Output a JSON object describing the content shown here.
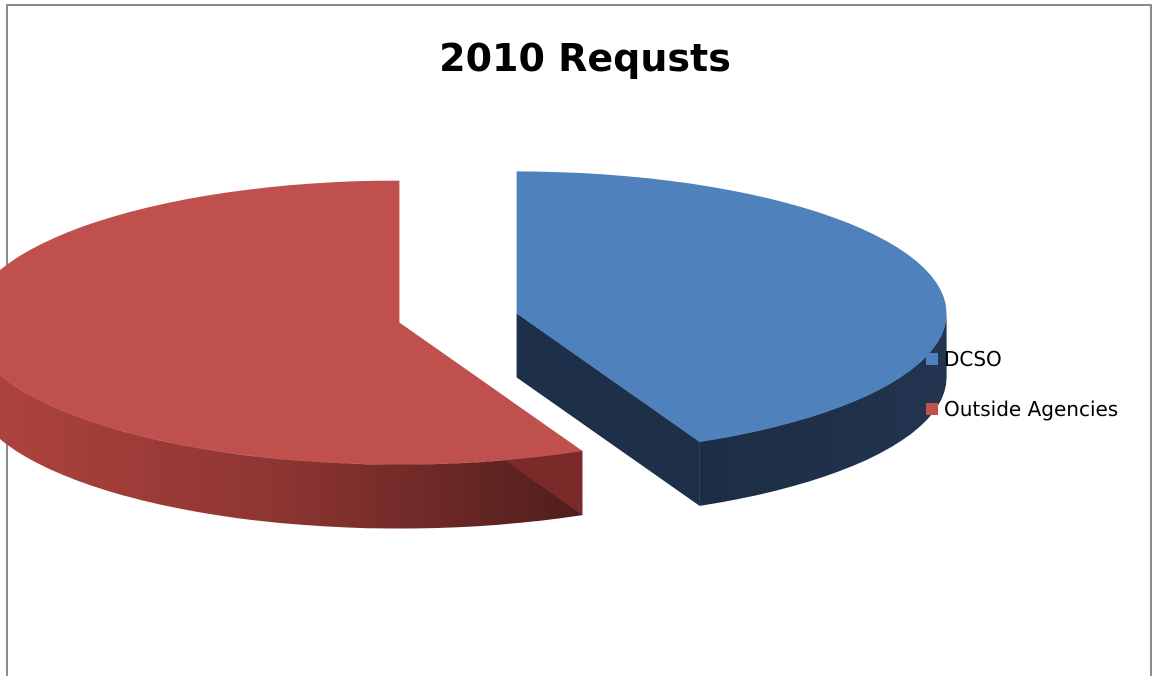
{
  "chart_data": {
    "type": "pie",
    "title": "2010 Requsts",
    "categories": [
      "DCSO",
      "Outside Agencies"
    ],
    "values": [
      43,
      57
    ],
    "colors": [
      "#4f81bd",
      "#c0504d"
    ],
    "style": "3d-exploded",
    "legend_position": "right"
  }
}
